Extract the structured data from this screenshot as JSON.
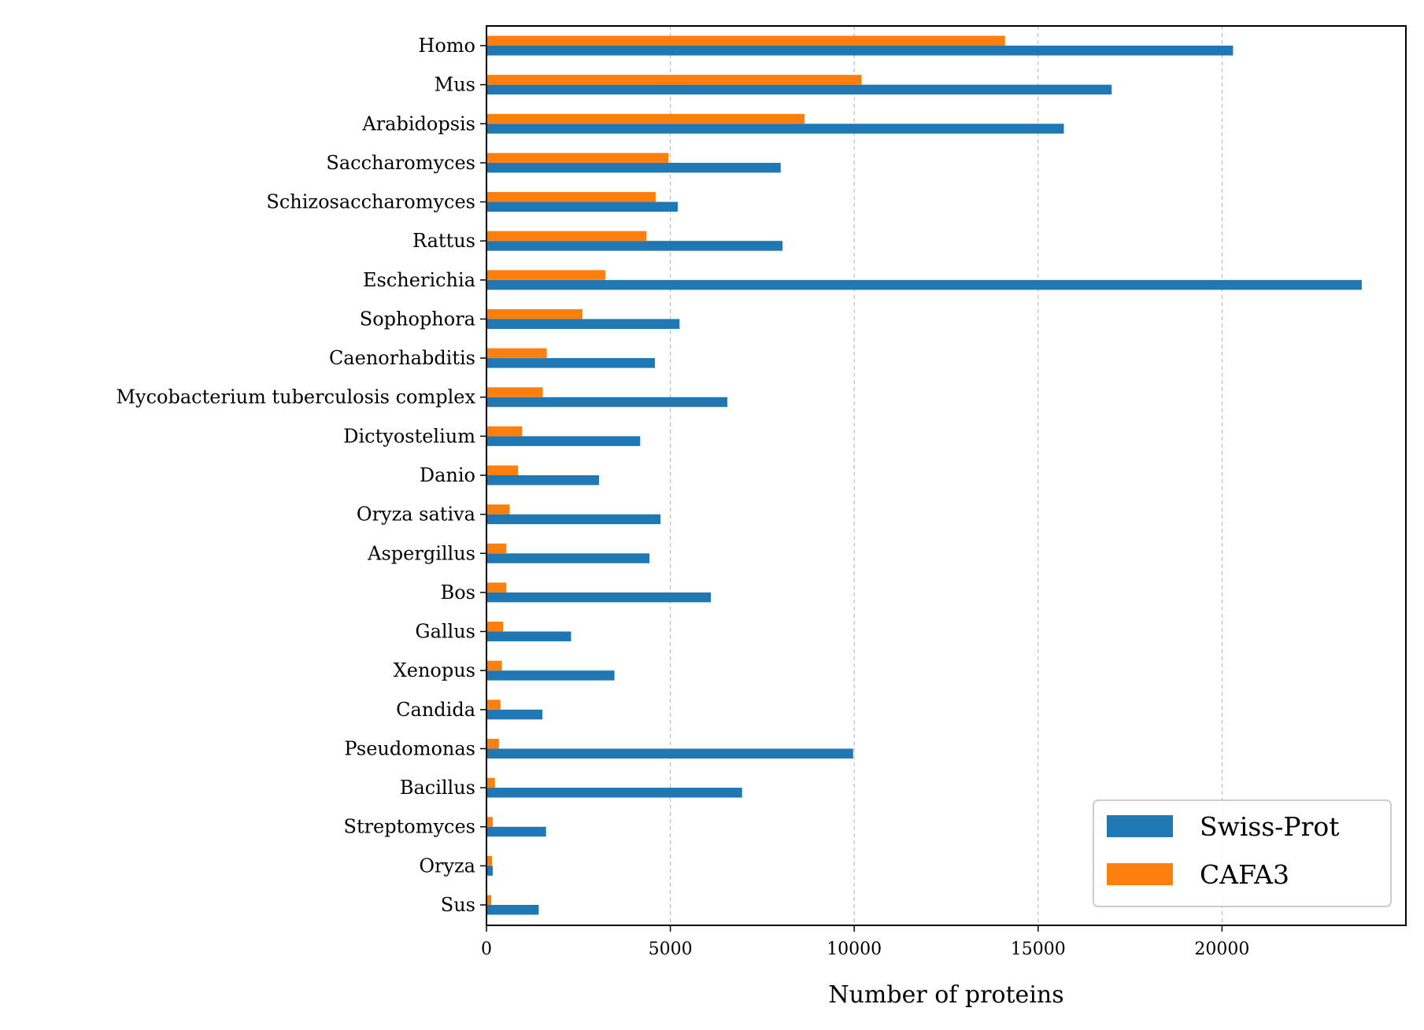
{
  "chart_data": {
    "type": "bar",
    "orientation": "horizontal",
    "title": "",
    "xlabel": "Number of proteins",
    "ylabel": "",
    "xlim": [
      0,
      25000
    ],
    "xticks": [
      0,
      5000,
      10000,
      15000,
      20000
    ],
    "xtick_labels": [
      "0",
      "5000",
      "10000",
      "15000",
      "20000"
    ],
    "grid": "x-axis dashed",
    "legend_position": "lower-right",
    "categories": [
      "Homo",
      "Mus",
      "Arabidopsis",
      "Saccharomyces",
      "Schizosaccharomyces",
      "Rattus",
      "Escherichia",
      "Sophophora",
      "Caenorhabditis",
      "Mycobacterium tuberculosis complex",
      "Dictyostelium",
      "Danio",
      "Oryza sativa",
      "Aspergillus",
      "Bos",
      "Gallus",
      "Xenopus",
      "Candida",
      "Pseudomonas",
      "Bacillus",
      "Streptomyces",
      "Oryza",
      "Sus"
    ],
    "series": [
      {
        "name": "Swiss-Prot",
        "color": "#1f77b4",
        "values": [
          20300,
          17000,
          15700,
          8000,
          5200,
          8050,
          23800,
          5250,
          4580,
          6550,
          4180,
          3060,
          4730,
          4430,
          6100,
          2300,
          3480,
          1520,
          9970,
          6950,
          1620,
          170,
          1420
        ]
      },
      {
        "name": "CAFA3",
        "color": "#ff7f0e",
        "values": [
          14100,
          10200,
          8650,
          4950,
          4600,
          4350,
          3230,
          2610,
          1640,
          1530,
          970,
          860,
          630,
          540,
          540,
          450,
          420,
          380,
          340,
          230,
          170,
          150,
          130
        ]
      }
    ]
  }
}
